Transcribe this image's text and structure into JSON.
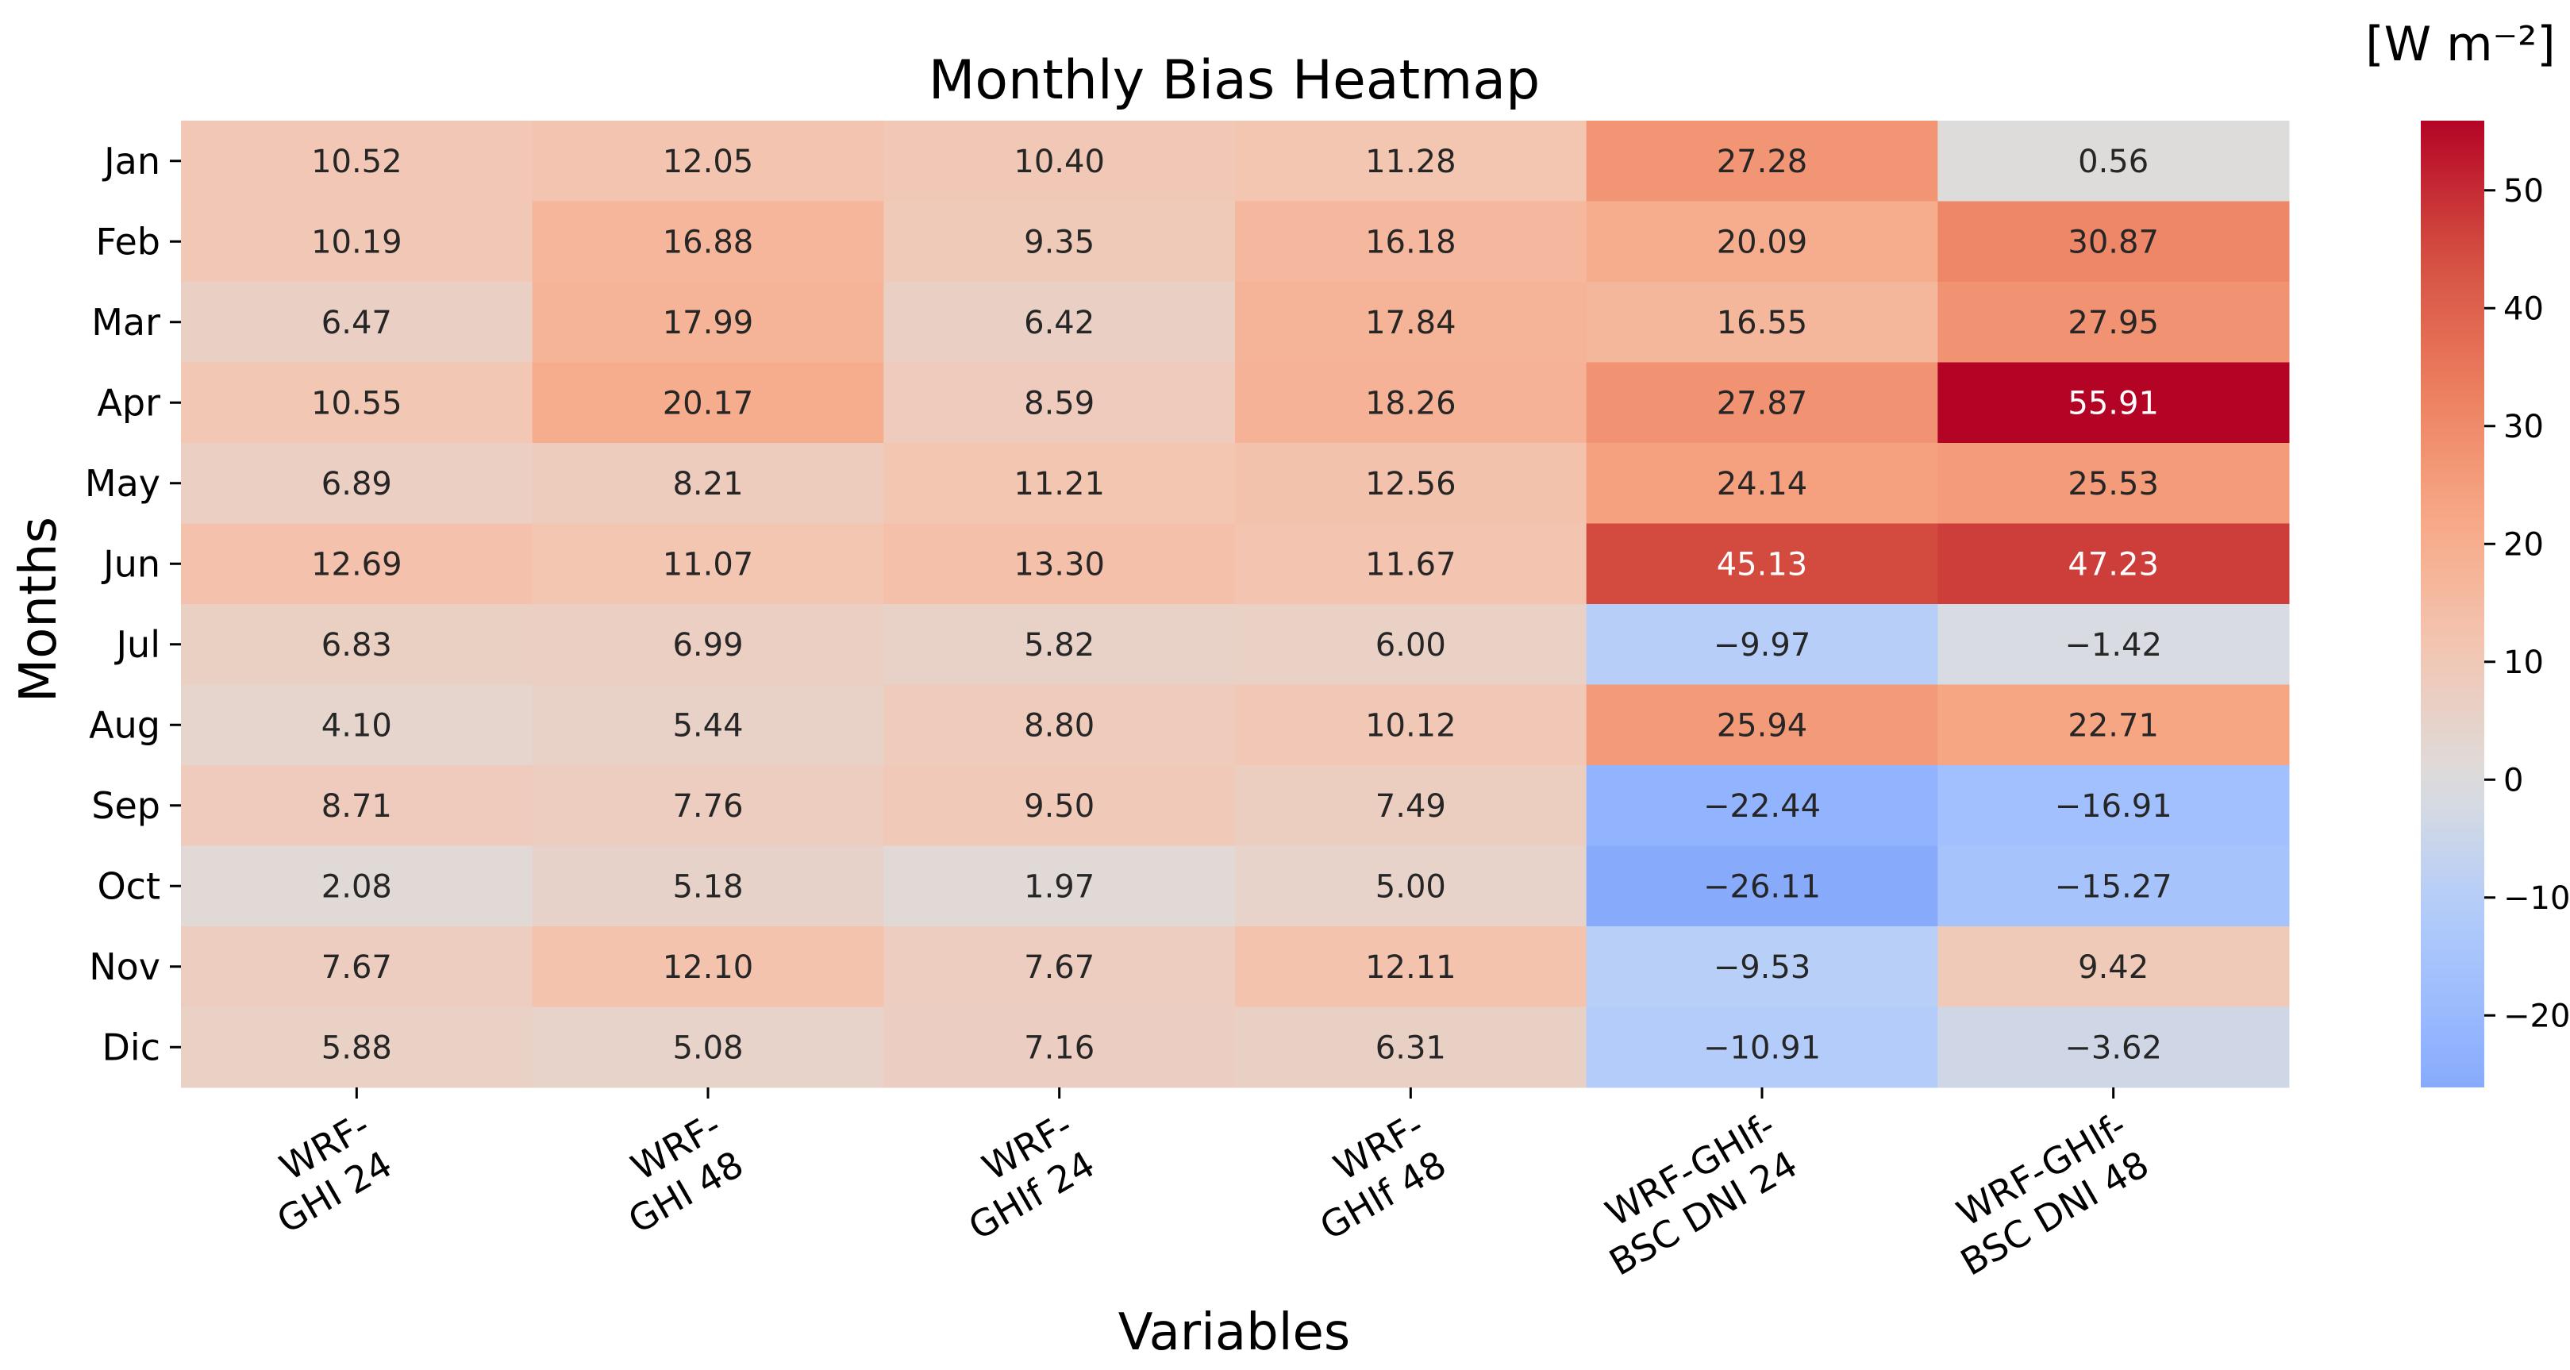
{
  "chart_data": {
    "type": "heatmap",
    "title": "Monthly Bias Heatmap",
    "xlabel": "Variables",
    "ylabel": "Months",
    "rows": [
      "Jan",
      "Feb",
      "Mar",
      "Apr",
      "May",
      "Jun",
      "Jul",
      "Aug",
      "Sep",
      "Oct",
      "Nov",
      "Dic"
    ],
    "columns": [
      [
        "WRF-",
        "GHI 24"
      ],
      [
        "WRF-",
        "GHI 48"
      ],
      [
        "WRF-",
        "GHIf 24"
      ],
      [
        "WRF-",
        "GHIf 48"
      ],
      [
        "WRF-GHIf-",
        "BSC DNI 24"
      ],
      [
        "WRF-GHIf-",
        "BSC DNI 48"
      ]
    ],
    "values": [
      [
        10.52,
        12.05,
        10.4,
        11.28,
        27.28,
        0.56
      ],
      [
        10.19,
        16.88,
        9.35,
        16.18,
        20.09,
        30.87
      ],
      [
        6.47,
        17.99,
        6.42,
        17.84,
        16.55,
        27.95
      ],
      [
        10.55,
        20.17,
        8.59,
        18.26,
        27.87,
        55.91
      ],
      [
        6.89,
        8.21,
        11.21,
        12.56,
        24.14,
        25.53
      ],
      [
        12.69,
        11.07,
        13.3,
        11.67,
        45.13,
        47.23
      ],
      [
        6.83,
        6.99,
        5.82,
        6.0,
        -9.97,
        -1.42
      ],
      [
        4.1,
        5.44,
        8.8,
        10.12,
        25.94,
        22.71
      ],
      [
        8.71,
        7.76,
        9.5,
        7.49,
        -22.44,
        -16.91
      ],
      [
        2.08,
        5.18,
        1.97,
        5.0,
        -26.11,
        -15.27
      ],
      [
        7.67,
        12.1,
        7.67,
        12.11,
        -9.53,
        9.42
      ],
      [
        5.88,
        5.08,
        7.16,
        6.31,
        -10.91,
        -3.62
      ]
    ],
    "colormap": "coolwarm",
    "center": 0,
    "vmin": -26.11,
    "vmax": 55.91,
    "colorbar": {
      "unit_label": "[W m⁻²]",
      "ticks": [
        -20,
        -10,
        0,
        10,
        20,
        30,
        40,
        50
      ]
    }
  }
}
